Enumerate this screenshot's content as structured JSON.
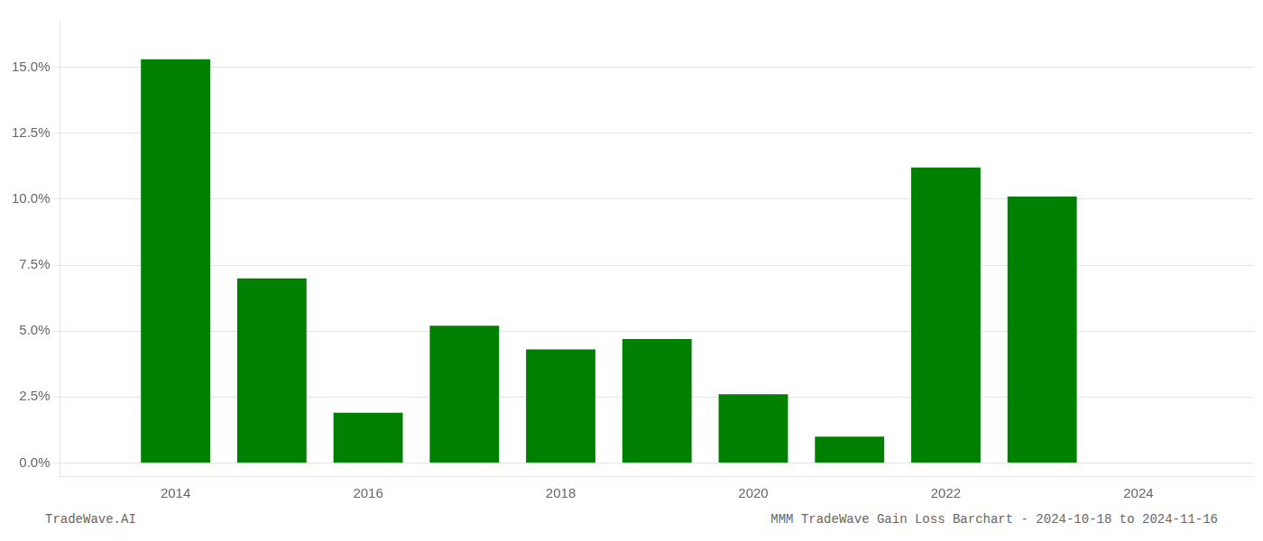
{
  "chart_data": {
    "type": "bar",
    "x": [
      2014,
      2015,
      2016,
      2017,
      2018,
      2019,
      2020,
      2021,
      2022,
      2023,
      2024
    ],
    "values": [
      0.153,
      0.07,
      0.019,
      0.052,
      0.043,
      0.047,
      0.026,
      0.01,
      0.112,
      0.101,
      0.0
    ],
    "color": "#008000",
    "xlim": [
      2012.8,
      2025.2
    ],
    "xticks": [
      2014,
      2016,
      2018,
      2020,
      2022,
      2024
    ],
    "ylim": [
      -0.005,
      0.168
    ],
    "yticks": [
      {
        "value": 0.0,
        "label": "0.0%"
      },
      {
        "value": 0.025,
        "label": "2.5%"
      },
      {
        "value": 0.05,
        "label": "5.0%"
      },
      {
        "value": 0.075,
        "label": "7.5%"
      },
      {
        "value": 0.1,
        "label": "10.0%"
      },
      {
        "value": 0.125,
        "label": "12.5%"
      },
      {
        "value": 0.15,
        "label": "15.0%"
      }
    ],
    "grid": true,
    "annotations": [
      "TradeWave.AI",
      "MMM TradeWave Gain Loss Barchart - 2024-10-18 to 2024-11-16"
    ]
  }
}
